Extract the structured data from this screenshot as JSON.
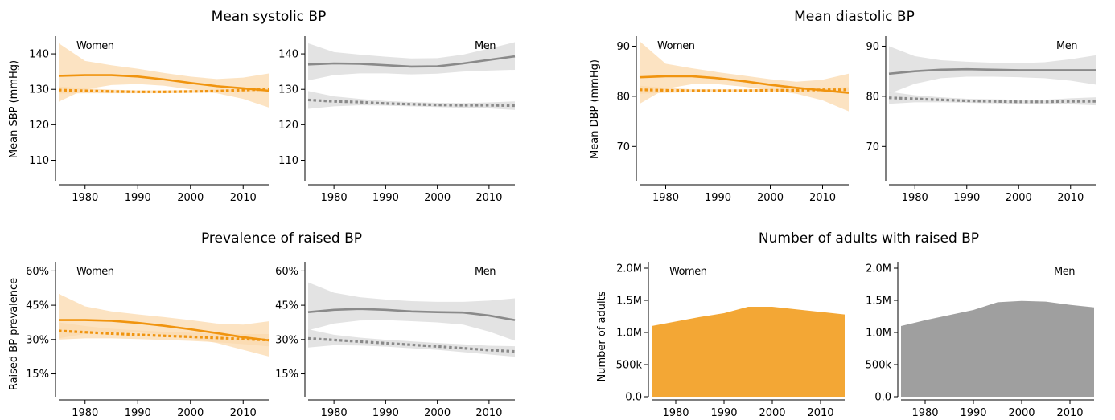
{
  "colors": {
    "women": "#f0940f",
    "women_band": "#fbd9ae",
    "men": "#8a8a8a",
    "men_band": "#dedede",
    "women_area": "#f3a735",
    "men_area": "#9f9f9f"
  },
  "titles": {
    "systolic": "Mean systolic BP",
    "diastolic": "Mean diastolic BP",
    "prevalence": "Prevalence of raised BP",
    "number": "Number of adults with raised BP"
  },
  "ylabels": {
    "systolic": "Mean SBP (mmHg)",
    "diastolic": "Mean DBP (mmHg)",
    "prevalence": "Raised BP prevalence",
    "number": "Number of adults"
  },
  "panel_labels": {
    "women": "Women",
    "men": "Men"
  },
  "chart_data": [
    {
      "type": "line",
      "title": "Mean systolic BP",
      "ylabel": "Mean SBP (mmHg)",
      "xlim": [
        1975,
        2015
      ],
      "ylim": [
        104,
        145
      ],
      "xticks": [
        1980,
        1990,
        2000,
        2010
      ],
      "yticks": [
        110,
        120,
        130,
        140
      ],
      "yticklabels": [
        "110",
        "120",
        "130",
        "140"
      ],
      "panels": [
        {
          "label": "Women",
          "x": [
            1975,
            1980,
            1985,
            1990,
            1995,
            2000,
            2005,
            2010,
            2015
          ],
          "series": [
            {
              "style": "solid",
              "values": [
                133.8,
                134.0,
                134.0,
                133.6,
                132.8,
                131.8,
                130.9,
                130.3,
                129.6
              ],
              "lower": [
                126.5,
                130.0,
                131.2,
                131.5,
                131.0,
                130.0,
                128.9,
                127.3,
                124.8
              ],
              "upper": [
                143.0,
                138.0,
                136.8,
                135.8,
                134.6,
                133.6,
                132.9,
                133.3,
                134.5
              ]
            },
            {
              "style": "dotted",
              "values": [
                129.8,
                129.6,
                129.4,
                129.3,
                129.3,
                129.4,
                129.5,
                129.8,
                130.0
              ],
              "lower": [
                128.8,
                128.9,
                128.9,
                128.9,
                128.9,
                129.0,
                129.1,
                129.3,
                129.4
              ],
              "upper": [
                130.8,
                130.3,
                129.9,
                129.7,
                129.7,
                129.8,
                129.9,
                130.3,
                130.6
              ]
            }
          ]
        },
        {
          "label": "Men",
          "x": [
            1975,
            1980,
            1985,
            1990,
            1995,
            2000,
            2005,
            2010,
            2015
          ],
          "series": [
            {
              "style": "solid",
              "values": [
                137.0,
                137.3,
                137.2,
                136.8,
                136.4,
                136.5,
                137.3,
                138.3,
                139.3
              ],
              "lower": [
                132.5,
                134.0,
                134.5,
                134.5,
                134.2,
                134.4,
                135.0,
                135.3,
                135.5
              ],
              "upper": [
                143.0,
                140.5,
                139.8,
                139.2,
                138.7,
                138.8,
                139.8,
                141.5,
                143.3
              ]
            },
            {
              "style": "dotted",
              "values": [
                127.0,
                126.6,
                126.4,
                126.0,
                125.8,
                125.6,
                125.5,
                125.5,
                125.4
              ],
              "lower": [
                124.5,
                125.2,
                125.5,
                125.4,
                125.2,
                125.0,
                124.8,
                124.6,
                124.2
              ],
              "upper": [
                129.5,
                128.0,
                127.3,
                126.7,
                126.4,
                126.2,
                126.1,
                126.3,
                126.6
              ]
            }
          ]
        }
      ]
    },
    {
      "type": "line",
      "title": "Mean diastolic BP",
      "ylabel": "Mean DBP (mmHg)",
      "xlim": [
        1975,
        2015
      ],
      "ylim": [
        63,
        92
      ],
      "xticks": [
        1980,
        1990,
        2000,
        2010
      ],
      "yticks": [
        70,
        80,
        90
      ],
      "yticklabels": [
        "70",
        "80",
        "90"
      ],
      "panels": [
        {
          "label": "Women",
          "x": [
            1975,
            1980,
            1985,
            1990,
            1995,
            2000,
            2005,
            2010,
            2015
          ],
          "series": [
            {
              "style": "solid",
              "values": [
                83.8,
                84.0,
                84.0,
                83.6,
                83.0,
                82.3,
                81.7,
                81.2,
                80.7
              ],
              "lower": [
                78.5,
                81.5,
                82.4,
                82.4,
                81.9,
                81.2,
                80.5,
                79.2,
                77.0
              ],
              "upper": [
                91.0,
                86.5,
                85.6,
                84.8,
                84.1,
                83.4,
                82.9,
                83.3,
                84.5
              ]
            },
            {
              "style": "dotted",
              "values": [
                81.3,
                81.2,
                81.1,
                81.1,
                81.1,
                81.2,
                81.2,
                81.3,
                81.3
              ],
              "lower": [
                80.5,
                80.7,
                80.8,
                80.8,
                80.8,
                80.9,
                80.9,
                80.9,
                80.8
              ],
              "upper": [
                82.1,
                81.7,
                81.4,
                81.4,
                81.4,
                81.5,
                81.5,
                81.7,
                81.8
              ]
            }
          ]
        },
        {
          "label": "Men",
          "x": [
            1975,
            1980,
            1985,
            1990,
            1995,
            2000,
            2005,
            2010,
            2015
          ],
          "series": [
            {
              "style": "solid",
              "values": [
                84.5,
                85.0,
                85.3,
                85.4,
                85.3,
                85.2,
                85.2,
                85.2,
                85.2
              ],
              "lower": [
                80.5,
                82.5,
                83.6,
                83.9,
                83.9,
                83.8,
                83.6,
                83.1,
                82.3
              ],
              "upper": [
                90.0,
                88.0,
                87.2,
                86.9,
                86.7,
                86.6,
                86.8,
                87.4,
                88.2
              ]
            },
            {
              "style": "dotted",
              "values": [
                79.7,
                79.5,
                79.3,
                79.1,
                79.0,
                78.9,
                78.9,
                79.0,
                79.0
              ],
              "lower": [
                78.5,
                78.8,
                78.8,
                78.7,
                78.6,
                78.5,
                78.5,
                78.4,
                78.2
              ],
              "upper": [
                80.9,
                80.2,
                79.8,
                79.5,
                79.4,
                79.3,
                79.3,
                79.6,
                79.8
              ]
            }
          ]
        }
      ]
    },
    {
      "type": "line",
      "title": "Prevalence of raised BP",
      "ylabel": "Raised BP prevalence",
      "xlim": [
        1975,
        2015
      ],
      "ylim": [
        5,
        64
      ],
      "xticks": [
        1980,
        1990,
        2000,
        2010
      ],
      "yticks": [
        15,
        30,
        45,
        60
      ],
      "yticklabels": [
        "15%",
        "30%",
        "45%",
        "60%"
      ],
      "panels": [
        {
          "label": "Women",
          "x": [
            1975,
            1980,
            1985,
            1990,
            1995,
            2000,
            2005,
            2010,
            2015
          ],
          "series": [
            {
              "style": "solid",
              "values": [
                38.5,
                38.5,
                38.2,
                37.3,
                36.0,
                34.5,
                32.8,
                31.0,
                29.6
              ],
              "lower": [
                30.5,
                32.5,
                33.5,
                33.2,
                32.0,
                30.5,
                28.5,
                25.5,
                22.5
              ],
              "upper": [
                50.0,
                44.5,
                42.3,
                41.0,
                39.8,
                38.5,
                37.0,
                36.5,
                38.0
              ]
            },
            {
              "style": "dotted",
              "values": [
                33.8,
                33.2,
                32.6,
                32.1,
                31.6,
                31.2,
                30.7,
                30.2,
                29.7
              ],
              "lower": [
                30.0,
                30.5,
                30.5,
                30.2,
                29.8,
                29.4,
                28.8,
                28.0,
                27.0
              ],
              "upper": [
                37.5,
                35.9,
                34.7,
                34.0,
                33.4,
                33.0,
                32.6,
                32.4,
                32.4
              ]
            }
          ]
        },
        {
          "label": "Men",
          "x": [
            1975,
            1980,
            1985,
            1990,
            1995,
            2000,
            2005,
            2010,
            2015
          ],
          "series": [
            {
              "style": "solid",
              "values": [
                42.0,
                43.0,
                43.4,
                43.0,
                42.3,
                42.0,
                41.8,
                40.5,
                38.5
              ],
              "lower": [
                34.0,
                37.0,
                38.3,
                38.5,
                38.0,
                37.5,
                36.5,
                33.5,
                29.5
              ],
              "upper": [
                55.0,
                50.5,
                48.5,
                47.5,
                46.8,
                46.5,
                46.5,
                47.0,
                48.0
              ]
            },
            {
              "style": "dotted",
              "values": [
                30.5,
                29.8,
                29.1,
                28.4,
                27.7,
                27.0,
                26.2,
                25.4,
                24.8
              ],
              "lower": [
                26.5,
                27.5,
                27.4,
                26.9,
                26.2,
                25.5,
                24.5,
                23.5,
                22.5
              ],
              "upper": [
                34.5,
                32.1,
                30.8,
                29.9,
                29.2,
                28.5,
                27.9,
                27.3,
                27.1
              ]
            }
          ]
        }
      ]
    },
    {
      "type": "area",
      "title": "Number of adults with raised BP",
      "ylabel": "Number of adults",
      "xlim": [
        1975,
        2015
      ],
      "ylim": [
        0,
        2100000
      ],
      "xticks": [
        1980,
        1990,
        2000,
        2010
      ],
      "yticks": [
        0,
        500000,
        1000000,
        1500000,
        2000000
      ],
      "yticklabels": [
        "0.0",
        "500k",
        "1.0M",
        "1.5M",
        "2.0M"
      ],
      "panels": [
        {
          "label": "Women",
          "x": [
            1975,
            1980,
            1985,
            1990,
            1995,
            2000,
            2005,
            2010,
            2015
          ],
          "values": [
            1100000,
            1170000,
            1240000,
            1300000,
            1400000,
            1400000,
            1360000,
            1320000,
            1280000
          ]
        },
        {
          "label": "Men",
          "x": [
            1975,
            1980,
            1985,
            1990,
            1995,
            2000,
            2005,
            2010,
            2015
          ],
          "values": [
            1100000,
            1190000,
            1270000,
            1350000,
            1470000,
            1490000,
            1480000,
            1430000,
            1390000
          ]
        }
      ]
    }
  ]
}
